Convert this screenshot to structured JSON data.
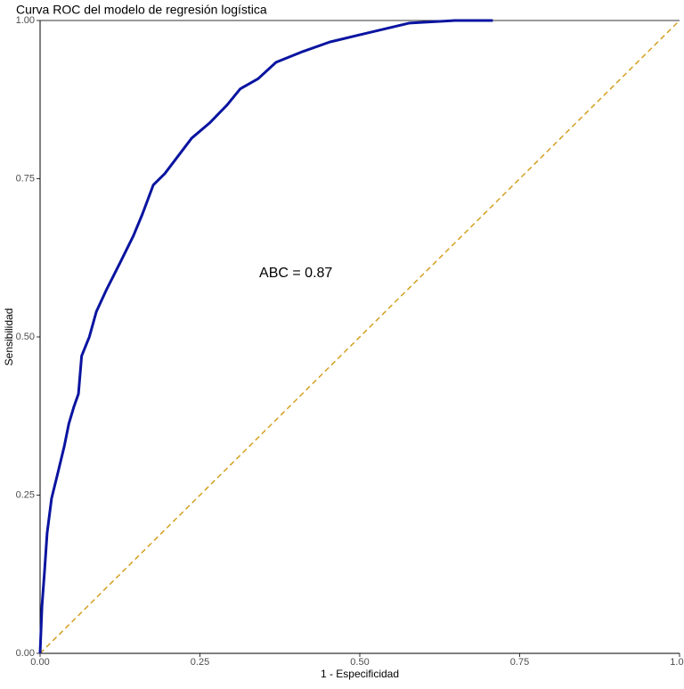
{
  "chart_data": {
    "type": "line",
    "title": "Curva ROC del modelo de regresión logística",
    "x_label": "1 - Especificidad",
    "y_label": "Sensibilidad",
    "annotation": {
      "text": "ABC = 0.87",
      "x": 0.4,
      "y": 0.6
    },
    "xlim": [
      0,
      1
    ],
    "ylim": [
      0,
      1
    ],
    "xticks": [
      {
        "value": 0,
        "label": "0.00"
      },
      {
        "value": 0.25,
        "label": "0.25"
      },
      {
        "value": 0.5,
        "label": "0.50"
      },
      {
        "value": 0.75,
        "label": "0.75"
      },
      {
        "value": 1,
        "label": "1.00"
      }
    ],
    "yticks": [
      {
        "value": 0,
        "label": "0.00"
      },
      {
        "value": 0.25,
        "label": "0.25"
      },
      {
        "value": 0.5,
        "label": "0.50"
      },
      {
        "value": 0.75,
        "label": "0.75"
      },
      {
        "value": 1,
        "label": "1.00"
      }
    ],
    "grid": false,
    "reference_line": {
      "x": [
        0,
        1
      ],
      "y": [
        0,
        1
      ],
      "color": "#d4a020",
      "dashed": true
    },
    "series": [
      {
        "color": "#0a14a0",
        "x": [
          0,
          0.003,
          0.007,
          0.011,
          0.018,
          0.028,
          0.038,
          0.045,
          0.053,
          0.06,
          0.065,
          0.077,
          0.088,
          0.104,
          0.125,
          0.146,
          0.16,
          0.177,
          0.195,
          0.216,
          0.237,
          0.265,
          0.292,
          0.313,
          0.341,
          0.369,
          0.411,
          0.453,
          0.494,
          0.536,
          0.578,
          0.648,
          0.708
        ],
        "values": [
          0,
          0.075,
          0.13,
          0.19,
          0.245,
          0.286,
          0.328,
          0.363,
          0.39,
          0.41,
          0.47,
          0.5,
          0.54,
          0.575,
          0.617,
          0.66,
          0.694,
          0.74,
          0.758,
          0.786,
          0.814,
          0.838,
          0.866,
          0.892,
          0.908,
          0.934,
          0.951,
          0.966,
          0.976,
          0.986,
          0.996,
          1,
          1
        ]
      }
    ]
  }
}
